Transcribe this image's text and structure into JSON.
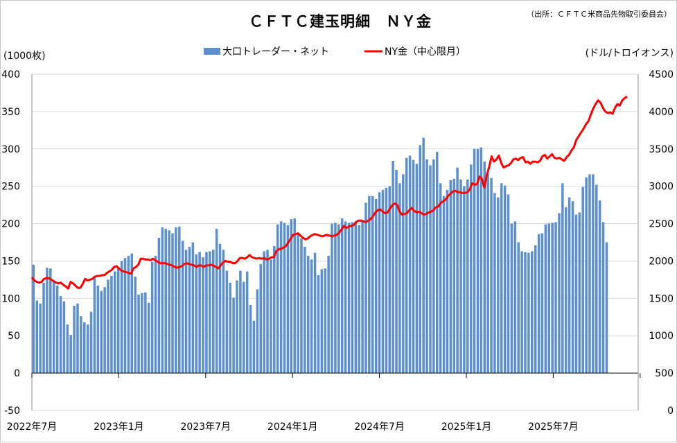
{
  "chart_data": {
    "type": "bar+line",
    "title": "ＣＦＴＣ建玉明細　ＮＹ金",
    "source": "（出所：ＣＦＴＣ米商品先物取引委員会）",
    "left_axis_label": "(1000枚)",
    "right_axis_label": "(ドル/トロイオンス)",
    "left_ylim": [
      -50,
      400
    ],
    "left_ticks": [
      -50,
      0,
      50,
      100,
      150,
      200,
      250,
      300,
      350,
      400
    ],
    "right_ylim": [
      0,
      4500
    ],
    "right_ticks": [
      0,
      500,
      1000,
      1500,
      2000,
      2500,
      3000,
      3500,
      4000,
      4500
    ],
    "x_tick_labels": [
      "2022年7月",
      "2023年1月",
      "2023年7月",
      "2024年1月",
      "2024年7月",
      "2025年1月",
      "2025年7月"
    ],
    "legend": [
      {
        "name": "大口トレーダー・ネット",
        "color": "#5b8fd0"
      },
      {
        "name": "NY金（中心限月）",
        "color": "#ff0000"
      }
    ],
    "series": [
      {
        "name": "大口トレーダー・ネット",
        "axis": "left",
        "color": "#5b8fd0",
        "values": [
          145,
          97,
          93,
          121,
          141,
          140,
          124,
          117,
          103,
          96,
          65,
          51,
          90,
          93,
          76,
          68,
          65,
          82,
          130,
          117,
          110,
          115,
          125,
          130,
          136,
          141,
          150,
          154,
          157,
          160,
          129,
          105,
          107,
          108,
          94,
          149,
          157,
          181,
          195,
          193,
          191,
          187,
          195,
          196,
          177,
          165,
          169,
          175,
          159,
          162,
          155,
          162,
          163,
          165,
          193,
          173,
          165,
          137,
          121,
          101,
          124,
          137,
          122,
          136,
          91,
          70,
          112,
          146,
          163,
          165,
          152,
          170,
          199,
          203,
          201,
          198,
          206,
          207,
          188,
          180,
          169,
          157,
          152,
          161,
          131,
          139,
          140,
          157,
          200,
          201,
          199,
          207,
          203,
          201,
          202,
          203,
          198,
          203,
          228,
          237,
          237,
          233,
          242,
          245,
          248,
          250,
          284,
          272,
          254,
          266,
          288,
          291,
          285,
          280,
          305,
          315,
          286,
          278,
          286,
          296,
          254,
          237,
          245,
          258,
          260,
          275,
          259,
          250,
          259,
          279,
          300,
          300,
          302,
          283,
          267,
          261,
          241,
          235,
          254,
          251,
          239,
          200,
          203,
          175,
          163,
          162,
          161,
          163,
          171,
          186,
          187,
          199,
          200,
          201,
          202,
          214,
          254,
          222,
          235,
          230,
          212,
          215,
          249,
          262,
          266,
          266,
          252,
          231,
          202,
          175
        ]
      },
      {
        "name": "NY金（中心限月）",
        "axis": "right",
        "color": "#ff0000",
        "values": [
          1780,
          1740,
          1720,
          1710,
          1720,
          1760,
          1770,
          1770,
          1750,
          1730,
          1710,
          1700,
          1710,
          1680,
          1660,
          1630,
          1720,
          1700,
          1670,
          1640,
          1640,
          1690,
          1760,
          1740,
          1750,
          1760,
          1790,
          1800,
          1800,
          1810,
          1810,
          1840,
          1860,
          1880,
          1920,
          1930,
          1900,
          1870,
          1860,
          1850,
          1840,
          1830,
          1900,
          1920,
          1950,
          2030,
          2030,
          2020,
          2020,
          2010,
          2030,
          2010,
          1990,
          1970,
          1970,
          1970,
          1960,
          1950,
          1940,
          1920,
          1910,
          1920,
          1930,
          1960,
          1970,
          1960,
          1950,
          1940,
          1920,
          1940,
          1940,
          1920,
          1940,
          1940,
          1950,
          1940,
          1920,
          1900,
          1940,
          1980,
          2000,
          1990,
          1990,
          1970,
          1970,
          2000,
          2040,
          2040,
          2030,
          2050,
          2080,
          2050,
          2040,
          2030,
          2040,
          2030,
          2040,
          2020,
          2030,
          2050,
          2050,
          2130,
          2160,
          2160,
          2180,
          2200,
          2250,
          2300,
          2350,
          2360,
          2370,
          2340,
          2310,
          2290,
          2300,
          2330,
          2350,
          2360,
          2350,
          2340,
          2330,
          2340,
          2350,
          2340,
          2330,
          2340,
          2350,
          2380,
          2420,
          2470,
          2440,
          2460,
          2470,
          2480,
          2520,
          2540,
          2540,
          2530,
          2520,
          2540,
          2560,
          2600,
          2650,
          2680,
          2690,
          2660,
          2640,
          2650,
          2700,
          2750,
          2770,
          2750,
          2660,
          2620,
          2630,
          2640,
          2680,
          2710,
          2670,
          2650,
          2660,
          2640,
          2620,
          2630,
          2650,
          2660,
          2680,
          2720,
          2730,
          2780,
          2800,
          2820,
          2870,
          2900,
          2930,
          2940,
          2920,
          2920,
          2910,
          2910,
          2920,
          2960,
          3040,
          3020,
          3030,
          3130,
          3100,
          2980,
          3150,
          3260,
          3400,
          3330,
          3360,
          3410,
          3310,
          3250,
          3270,
          3280,
          3310,
          3360,
          3370,
          3350,
          3380,
          3390,
          3320,
          3330,
          3300,
          3330,
          3330,
          3320,
          3340,
          3400,
          3420,
          3370,
          3400,
          3430,
          3380,
          3370,
          3380,
          3360,
          3340,
          3390,
          3420,
          3480,
          3520,
          3620,
          3670,
          3720,
          3770,
          3830,
          3870,
          3960,
          4040,
          4100,
          4150,
          4120,
          4050,
          4000,
          3980,
          3990,
          3970,
          4050,
          4100,
          4080,
          4150,
          4180,
          4200
        ]
      }
    ]
  }
}
